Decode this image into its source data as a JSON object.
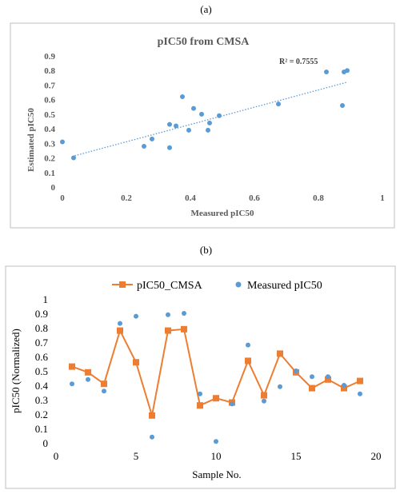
{
  "labels": {
    "a": "(a)",
    "b": "(b)"
  },
  "colors": {
    "blue": "#5B9BD5",
    "orange": "#ED7D31",
    "border": "#BFBFBF",
    "text": "#595959"
  },
  "chart_data": [
    {
      "type": "scatter",
      "title": "pIC50 from CMSA",
      "xlabel": "Measured pIC50",
      "ylabel": "Estimated pIC50",
      "xlim": [
        0,
        1
      ],
      "ylim": [
        0,
        0.9
      ],
      "xticks": [
        "0",
        "0.2",
        "0.4",
        "0.6",
        "0.8",
        "1"
      ],
      "yticks": [
        "0",
        "0.1",
        "0.2",
        "0.3",
        "0.4",
        "0.5",
        "0.6",
        "0.7",
        "0.8",
        "0.9"
      ],
      "annotation": "R² = 0.7555",
      "trendline": {
        "style": "dotted linear",
        "points": [
          [
            0.03,
            0.21
          ],
          [
            0.89,
            0.72
          ]
        ]
      },
      "points": [
        [
          0.0,
          0.31
        ],
        [
          0.035,
          0.2
        ],
        [
          0.255,
          0.28
        ],
        [
          0.28,
          0.33
        ],
        [
          0.335,
          0.27
        ],
        [
          0.335,
          0.43
        ],
        [
          0.355,
          0.42
        ],
        [
          0.375,
          0.62
        ],
        [
          0.395,
          0.39
        ],
        [
          0.41,
          0.54
        ],
        [
          0.435,
          0.5
        ],
        [
          0.455,
          0.39
        ],
        [
          0.46,
          0.44
        ],
        [
          0.49,
          0.49
        ],
        [
          0.675,
          0.57
        ],
        [
          0.825,
          0.79
        ],
        [
          0.875,
          0.56
        ],
        [
          0.88,
          0.79
        ],
        [
          0.89,
          0.8
        ]
      ],
      "grid": false
    },
    {
      "type": "line",
      "ylabel": "pIC50 (Normalized)",
      "xlabel": "Sample No.",
      "xlim": [
        0,
        20
      ],
      "ylim": [
        0,
        1
      ],
      "xticks": [
        "0",
        "5",
        "10",
        "15",
        "20"
      ],
      "yticks": [
        "0",
        "0.1",
        "0.2",
        "0.3",
        "0.4",
        "0.5",
        "0.6",
        "0.7",
        "0.8",
        "0.9",
        "1"
      ],
      "legend_position": "top",
      "x": [
        1,
        2,
        3,
        4,
        5,
        6,
        7,
        8,
        9,
        10,
        11,
        12,
        13,
        14,
        15,
        16,
        17,
        18,
        19
      ],
      "series": [
        {
          "name": "pIC50_CMSA",
          "style": "line-square",
          "values": [
            0.53,
            0.49,
            0.41,
            0.78,
            0.56,
            0.19,
            0.78,
            0.79,
            0.26,
            0.31,
            0.28,
            0.57,
            0.33,
            0.62,
            0.49,
            0.38,
            0.44,
            0.38,
            0.43
          ]
        },
        {
          "name": "Measured pIC50",
          "style": "marker-circle",
          "values": [
            0.41,
            0.44,
            0.36,
            0.83,
            0.88,
            0.04,
            0.89,
            0.9,
            0.34,
            0.01,
            0.27,
            0.68,
            0.29,
            0.39,
            0.5,
            0.46,
            0.46,
            0.4,
            0.34
          ]
        }
      ],
      "grid": false
    }
  ]
}
